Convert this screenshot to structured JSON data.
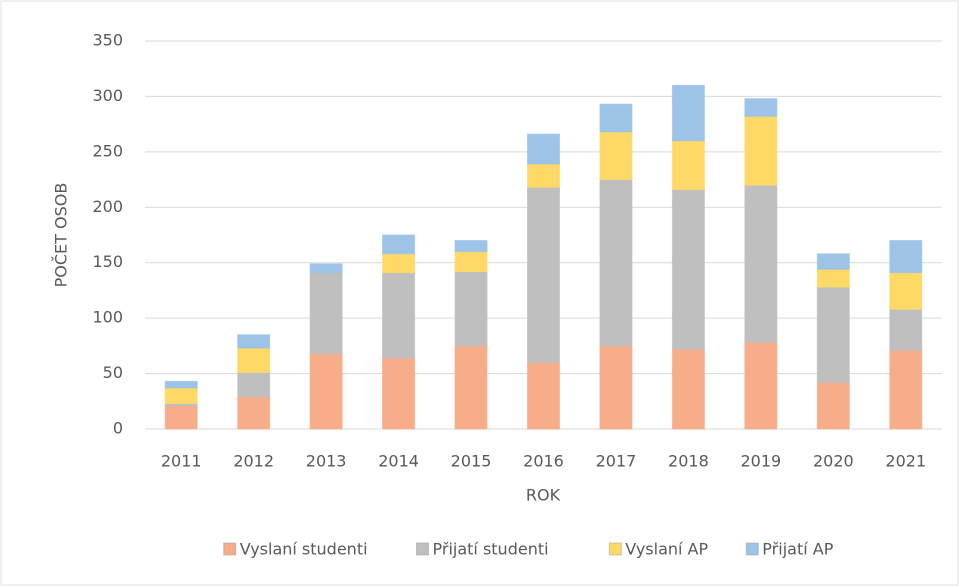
{
  "chart_data": {
    "type": "bar",
    "stacked": true,
    "x_label": "ROK",
    "y_label": "POČET OSOB",
    "categories": [
      "2011",
      "2012",
      "2013",
      "2014",
      "2015",
      "2016",
      "2017",
      "2018",
      "2019",
      "2020",
      "2021"
    ],
    "series": [
      {
        "name": "Vyslaní studenti",
        "color": "#f7ad8a",
        "values": [
          21,
          29,
          68,
          64,
          75,
          60,
          75,
          72,
          78,
          42,
          71
        ]
      },
      {
        "name": "Přijatí studenti",
        "color": "#bfbfbf",
        "values": [
          2,
          22,
          73,
          77,
          67,
          158,
          150,
          144,
          142,
          86,
          37
        ]
      },
      {
        "name": "Vyslaní AP",
        "color": "#ffd966",
        "values": [
          14,
          22,
          0,
          17,
          18,
          21,
          43,
          44,
          62,
          16,
          33
        ]
      },
      {
        "name": "Přijatí AP",
        "color": "#9dc3e6",
        "values": [
          6,
          12,
          8,
          17,
          10,
          27,
          25,
          50,
          16,
          14,
          29
        ]
      }
    ],
    "ylim": [
      0,
      350
    ],
    "yticks": [
      0,
      50,
      100,
      150,
      200,
      250,
      300,
      350
    ],
    "grid": true,
    "legend": "bottom"
  }
}
